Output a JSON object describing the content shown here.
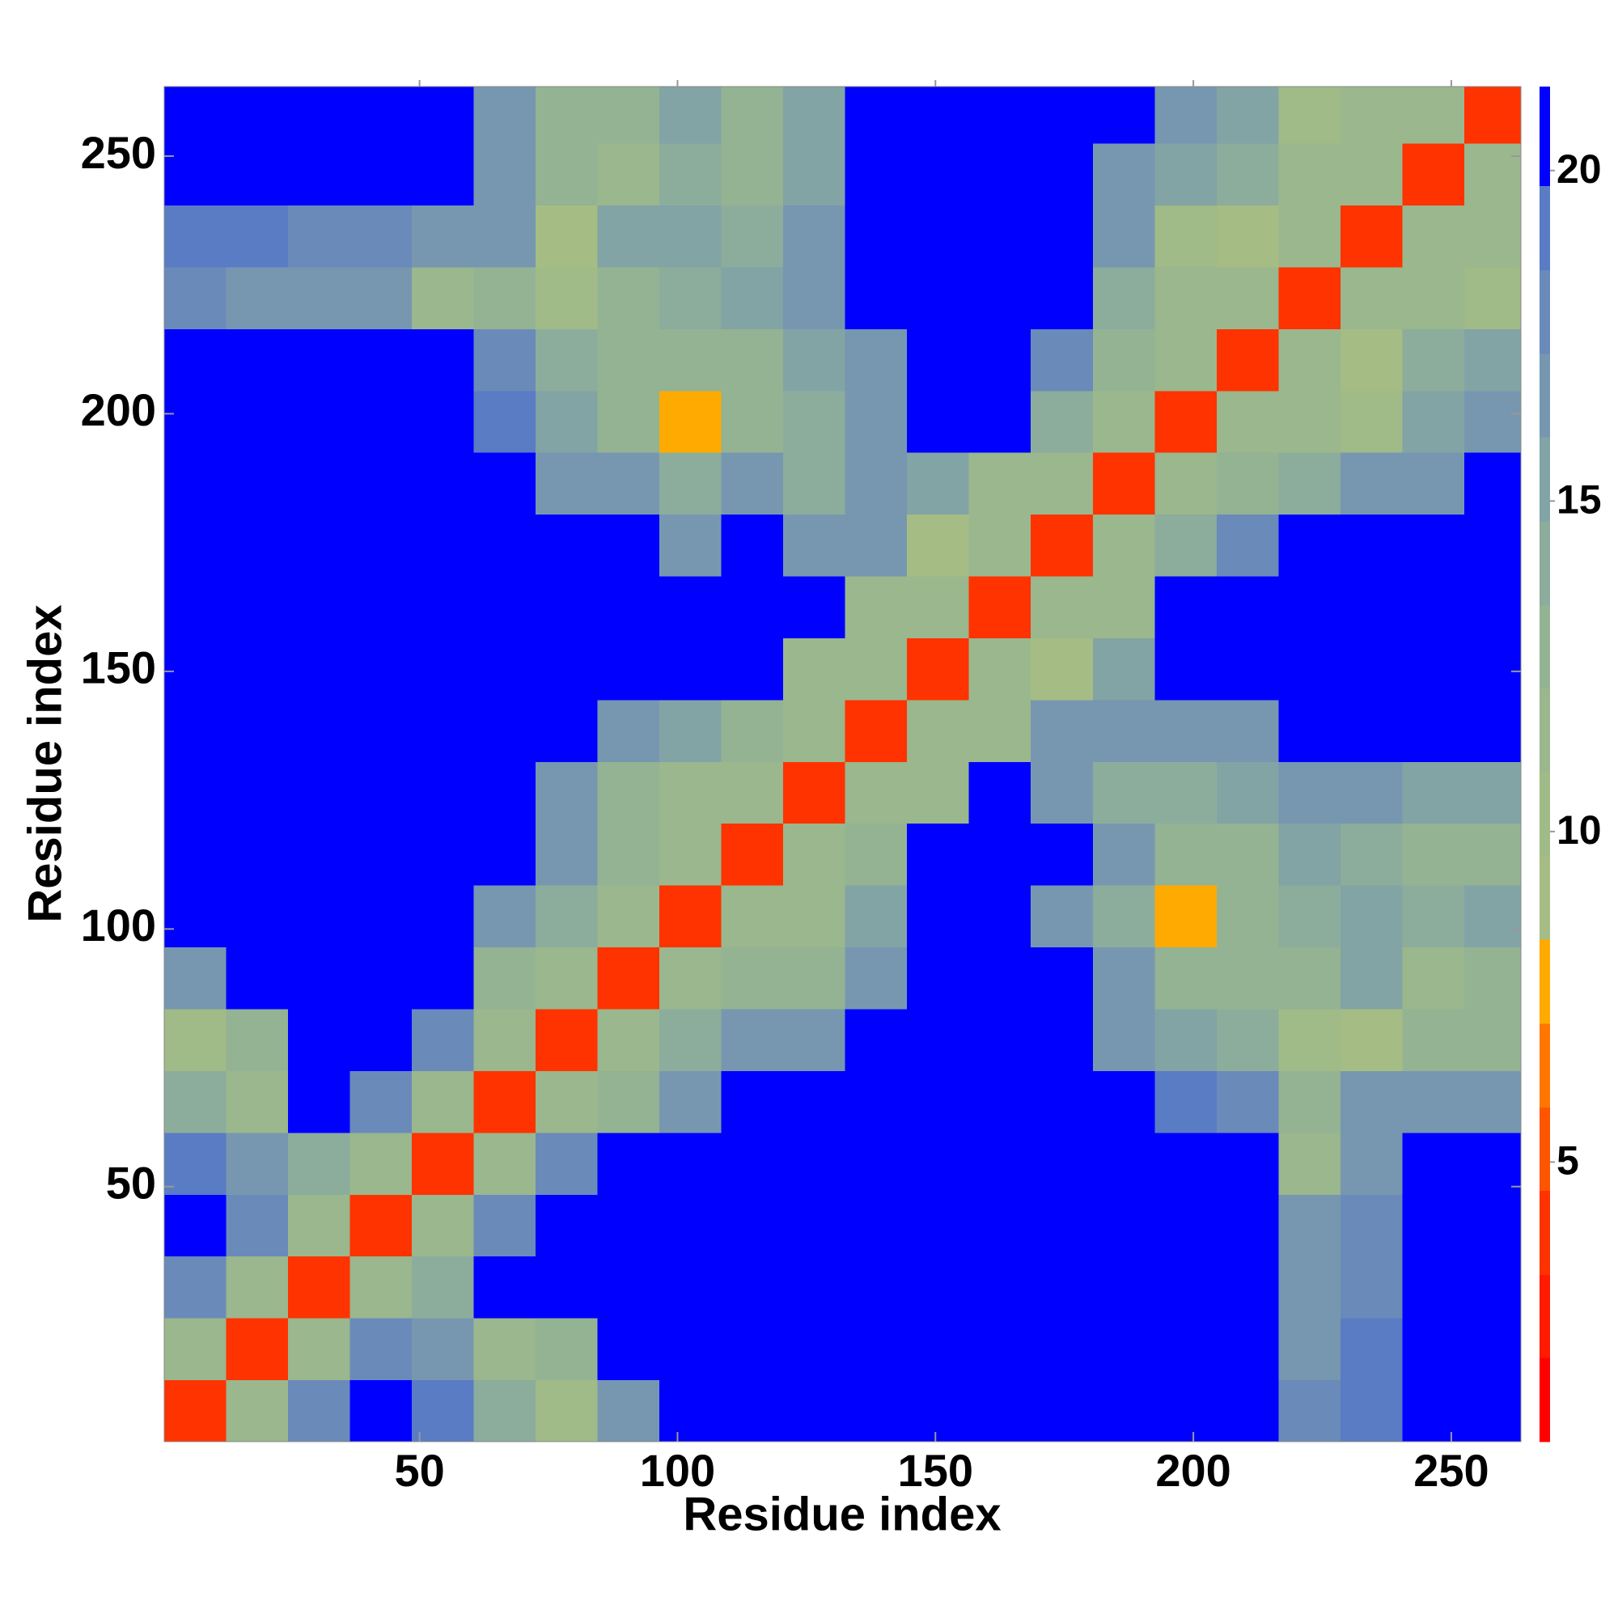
{
  "chart_data": {
    "type": "heatmap",
    "x_label": "Residue index",
    "y_label": "Residue index",
    "xlim": [
      0.5,
      263.5
    ],
    "ylim": [
      0.5,
      263.5
    ],
    "xticks": [
      50,
      100,
      150,
      200,
      250
    ],
    "yticks": [
      50,
      100,
      150,
      200,
      250
    ],
    "xbins": [
      0.5,
      12.5,
      24.5,
      36.5,
      48.5,
      60.5,
      72.5,
      84.5,
      96.5,
      108.5,
      120.5,
      132.5,
      144.5,
      156.5,
      168.5,
      180.5,
      192.5,
      204.5,
      216.5,
      228.5,
      240.5,
      252.5,
      263.5
    ],
    "ybins": [
      0.5,
      12.5,
      24.5,
      36.5,
      48.5,
      60.5,
      72.5,
      84.5,
      96.5,
      108.5,
      120.5,
      132.5,
      144.5,
      156.5,
      168.5,
      180.5,
      192.5,
      204.5,
      216.5,
      228.5,
      240.5,
      252.5,
      263.5
    ],
    "z": [
      [
        4,
        11,
        18,
        21,
        19,
        14,
        10,
        17,
        21,
        21,
        21,
        21,
        21,
        21,
        21,
        21,
        21,
        21,
        18,
        19,
        21,
        21
      ],
      [
        11,
        4,
        11,
        18,
        16,
        12,
        13,
        21,
        21,
        21,
        21,
        21,
        21,
        21,
        21,
        21,
        21,
        21,
        17,
        19,
        21,
        21
      ],
      [
        18,
        11,
        4,
        11,
        14,
        21,
        21,
        21,
        21,
        21,
        21,
        21,
        21,
        21,
        21,
        21,
        21,
        21,
        17,
        18,
        21,
        21
      ],
      [
        21,
        18,
        11,
        4,
        11,
        18,
        21,
        21,
        21,
        21,
        21,
        21,
        21,
        21,
        21,
        21,
        21,
        21,
        16,
        18,
        21,
        21
      ],
      [
        19,
        16,
        14,
        11,
        4,
        11,
        18,
        21,
        21,
        21,
        21,
        21,
        21,
        21,
        21,
        21,
        21,
        21,
        12,
        16,
        21,
        21
      ],
      [
        14,
        12,
        21,
        18,
        11,
        4,
        11,
        13,
        17,
        21,
        21,
        21,
        21,
        21,
        21,
        21,
        19,
        18,
        13,
        16,
        16,
        17
      ],
      [
        10,
        13,
        21,
        21,
        18,
        11,
        4,
        11,
        14,
        16,
        17,
        21,
        21,
        21,
        21,
        17,
        15,
        14,
        10,
        9,
        13,
        13
      ],
      [
        17,
        21,
        21,
        21,
        21,
        13,
        11,
        4,
        11,
        13,
        13,
        17,
        21,
        21,
        21,
        16,
        13,
        13,
        13,
        15,
        12,
        13
      ],
      [
        21,
        21,
        21,
        21,
        21,
        17,
        14,
        11,
        4,
        11,
        12,
        15,
        21,
        21,
        17,
        14,
        8,
        13,
        14,
        15,
        14,
        15
      ],
      [
        21,
        21,
        21,
        21,
        21,
        21,
        16,
        13,
        11,
        4,
        11,
        13,
        21,
        21,
        21,
        16,
        13,
        13,
        15,
        14,
        13,
        13
      ],
      [
        21,
        21,
        21,
        21,
        21,
        21,
        17,
        13,
        12,
        11,
        4,
        11,
        12,
        21,
        17,
        14,
        14,
        15,
        17,
        16,
        15,
        15
      ],
      [
        21,
        21,
        21,
        21,
        21,
        21,
        21,
        17,
        15,
        13,
        11,
        4,
        11,
        12,
        16,
        17,
        17,
        16,
        21,
        21,
        21,
        21
      ],
      [
        21,
        21,
        21,
        21,
        21,
        21,
        21,
        21,
        21,
        21,
        12,
        11,
        4,
        11,
        9,
        15,
        21,
        21,
        21,
        21,
        21,
        21
      ],
      [
        21,
        21,
        21,
        21,
        21,
        21,
        21,
        21,
        21,
        21,
        21,
        12,
        11,
        4,
        11,
        12,
        21,
        21,
        21,
        21,
        21,
        21
      ],
      [
        21,
        21,
        21,
        21,
        21,
        21,
        21,
        21,
        17,
        21,
        17,
        16,
        9,
        11,
        4,
        11,
        14,
        18,
        21,
        21,
        21,
        21
      ],
      [
        21,
        21,
        21,
        21,
        21,
        21,
        17,
        16,
        14,
        16,
        14,
        17,
        15,
        12,
        11,
        4,
        11,
        13,
        14,
        16,
        17,
        21
      ],
      [
        21,
        21,
        21,
        21,
        21,
        19,
        15,
        13,
        8,
        13,
        14,
        17,
        21,
        21,
        14,
        11,
        4,
        11,
        12,
        10,
        15,
        16
      ],
      [
        21,
        21,
        21,
        21,
        21,
        18,
        14,
        13,
        13,
        13,
        15,
        16,
        21,
        21,
        18,
        13,
        11,
        4,
        11,
        9,
        14,
        15
      ],
      [
        18,
        17,
        17,
        16,
        12,
        13,
        10,
        13,
        14,
        15,
        17,
        21,
        21,
        21,
        21,
        14,
        12,
        11,
        4,
        11,
        12,
        10
      ],
      [
        19,
        19,
        18,
        18,
        16,
        16,
        9,
        15,
        15,
        14,
        16,
        21,
        21,
        21,
        21,
        16,
        10,
        9,
        11,
        4,
        11,
        12
      ],
      [
        21,
        21,
        21,
        21,
        21,
        16,
        13,
        12,
        14,
        13,
        15,
        21,
        21,
        21,
        21,
        17,
        15,
        14,
        12,
        11,
        4,
        11
      ],
      [
        21,
        21,
        21,
        21,
        21,
        17,
        13,
        13,
        15,
        13,
        15,
        21,
        21,
        21,
        21,
        21,
        16,
        15,
        10,
        12,
        11,
        4
      ]
    ],
    "colorbar": {
      "lim": [
        0.77,
        21.27
      ],
      "ticks": [
        5,
        10,
        15,
        20
      ],
      "levels": [
        0.77,
        2.04,
        3.3,
        4.57,
        5.83,
        7.1,
        8.37,
        9.63,
        10.9,
        12.17,
        13.43,
        14.7,
        15.97,
        17.23,
        18.5,
        19.77,
        21.27
      ],
      "colors": [
        "#ff0000",
        "#ff1a00",
        "#ff3300",
        "#ff5500",
        "#ff7700",
        "#ffaa00",
        "#a5bd84",
        "#a0ba88",
        "#9ab78d",
        "#93b393",
        "#8cad9b",
        "#82a4a5",
        "#7797b0",
        "#6a8aba",
        "#5a7cc4",
        "#0000ff"
      ]
    }
  }
}
